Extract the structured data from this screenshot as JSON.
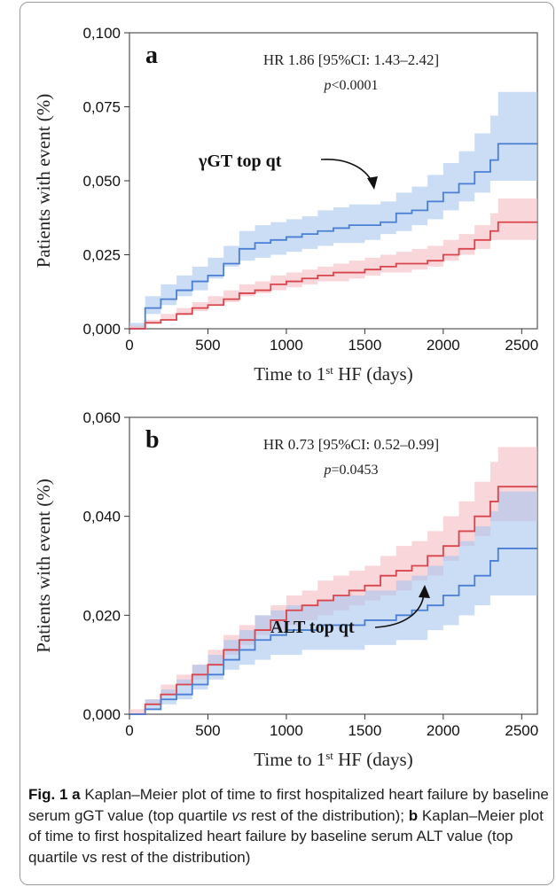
{
  "chart_data": [
    {
      "type": "line",
      "panel_label": "a",
      "hr_text": "HR 1.86 [95%CI: 1.43–2.42]",
      "p_text": "p<0.0001",
      "annotation": "γGT top qt",
      "xlabel": "Time to 1st HF (days)",
      "ylabel": "Patients with event (%)",
      "xlim": [
        0,
        2600
      ],
      "ylim": [
        0,
        0.1
      ],
      "x_ticks": [
        0,
        500,
        1000,
        1500,
        2000,
        2500
      ],
      "x_tick_labels": [
        "0",
        "500",
        "1000",
        "1500",
        "2000",
        "2500"
      ],
      "y_ticks": [
        0,
        0.025,
        0.05,
        0.075,
        0.1
      ],
      "y_tick_labels": [
        "0,000",
        "0,025",
        "0,050",
        "0,075",
        "0,100"
      ],
      "grid": false,
      "series": [
        {
          "color": "#4a7fd4",
          "band_color": "#a9c5ef",
          "x": [
            0,
            100,
            200,
            300,
            400,
            500,
            600,
            700,
            800,
            900,
            1000,
            1100,
            1200,
            1300,
            1400,
            1500,
            1600,
            1700,
            1800,
            1900,
            2000,
            2100,
            2200,
            2300,
            2350,
            2600
          ],
          "y": [
            0,
            0.007,
            0.01,
            0.013,
            0.016,
            0.018,
            0.022,
            0.027,
            0.029,
            0.03,
            0.031,
            0.032,
            0.033,
            0.034,
            0.035,
            0.035,
            0.036,
            0.039,
            0.04,
            0.043,
            0.046,
            0.049,
            0.053,
            0.057,
            0.0625,
            0.0625
          ],
          "lower": [
            0,
            0.002,
            0.005,
            0.008,
            0.011,
            0.013,
            0.017,
            0.021,
            0.023,
            0.024,
            0.025,
            0.026,
            0.027,
            0.028,
            0.029,
            0.029,
            0.03,
            0.032,
            0.033,
            0.035,
            0.037,
            0.04,
            0.043,
            0.046,
            0.05,
            0.05
          ],
          "upper": [
            0,
            0.011,
            0.015,
            0.018,
            0.021,
            0.024,
            0.028,
            0.033,
            0.035,
            0.036,
            0.037,
            0.038,
            0.04,
            0.041,
            0.042,
            0.042,
            0.043,
            0.046,
            0.048,
            0.052,
            0.056,
            0.06,
            0.066,
            0.072,
            0.08,
            0.08
          ]
        },
        {
          "color": "#d9454c",
          "band_color": "#f3bac0",
          "x": [
            0,
            100,
            200,
            300,
            400,
            500,
            600,
            700,
            800,
            900,
            1000,
            1100,
            1200,
            1300,
            1400,
            1500,
            1600,
            1700,
            1800,
            1900,
            2000,
            2100,
            2200,
            2300,
            2350,
            2600
          ],
          "y": [
            0,
            0.002,
            0.003,
            0.005,
            0.007,
            0.008,
            0.01,
            0.012,
            0.013,
            0.015,
            0.016,
            0.017,
            0.018,
            0.019,
            0.019,
            0.02,
            0.021,
            0.022,
            0.022,
            0.023,
            0.025,
            0.027,
            0.03,
            0.033,
            0.036,
            0.036
          ],
          "lower": [
            0,
            0.001,
            0.002,
            0.003,
            0.005,
            0.006,
            0.008,
            0.009,
            0.011,
            0.012,
            0.013,
            0.014,
            0.015,
            0.016,
            0.016,
            0.017,
            0.018,
            0.019,
            0.019,
            0.02,
            0.021,
            0.023,
            0.025,
            0.027,
            0.03,
            0.03
          ],
          "upper": [
            0,
            0.003,
            0.005,
            0.007,
            0.009,
            0.011,
            0.013,
            0.015,
            0.016,
            0.018,
            0.019,
            0.02,
            0.021,
            0.022,
            0.023,
            0.024,
            0.025,
            0.026,
            0.027,
            0.028,
            0.03,
            0.032,
            0.035,
            0.039,
            0.044,
            0.044
          ]
        }
      ]
    },
    {
      "type": "line",
      "panel_label": "b",
      "hr_text": "HR 0.73 [95%CI: 0.52–0.99]",
      "p_text": "p=0.0453",
      "annotation": "ALT top qt",
      "xlabel": "Time to 1st HF (days)",
      "ylabel": "Patients with event (%)",
      "xlim": [
        0,
        2600
      ],
      "ylim": [
        0,
        0.06
      ],
      "x_ticks": [
        0,
        500,
        1000,
        1500,
        2000,
        2500
      ],
      "x_tick_labels": [
        "0",
        "500",
        "1000",
        "1500",
        "2000",
        "2500"
      ],
      "y_ticks": [
        0,
        0.02,
        0.04,
        0.06
      ],
      "y_tick_labels": [
        "0,000",
        "0,020",
        "0,040",
        "0,060"
      ],
      "grid": false,
      "series": [
        {
          "color": "#d9454c",
          "band_color": "#f3bac0",
          "x": [
            0,
            100,
            200,
            300,
            400,
            500,
            600,
            700,
            800,
            900,
            1000,
            1100,
            1200,
            1300,
            1400,
            1500,
            1600,
            1700,
            1800,
            1900,
            2000,
            2100,
            2200,
            2300,
            2350,
            2600
          ],
          "y": [
            0,
            0.002,
            0.004,
            0.006,
            0.008,
            0.01,
            0.013,
            0.015,
            0.017,
            0.019,
            0.021,
            0.022,
            0.023,
            0.024,
            0.025,
            0.026,
            0.028,
            0.029,
            0.03,
            0.032,
            0.034,
            0.037,
            0.04,
            0.043,
            0.046,
            0.046
          ],
          "lower": [
            0,
            0.001,
            0.002,
            0.004,
            0.006,
            0.007,
            0.01,
            0.012,
            0.014,
            0.016,
            0.017,
            0.018,
            0.019,
            0.02,
            0.021,
            0.022,
            0.023,
            0.024,
            0.025,
            0.027,
            0.028,
            0.031,
            0.034,
            0.036,
            0.039,
            0.039
          ],
          "upper": [
            0,
            0.003,
            0.006,
            0.008,
            0.01,
            0.013,
            0.016,
            0.018,
            0.02,
            0.022,
            0.024,
            0.025,
            0.027,
            0.028,
            0.029,
            0.03,
            0.032,
            0.034,
            0.035,
            0.037,
            0.04,
            0.043,
            0.047,
            0.051,
            0.054,
            0.054
          ]
        },
        {
          "color": "#4a7fd4",
          "band_color": "#a9c5ef",
          "x": [
            0,
            100,
            200,
            300,
            400,
            500,
            600,
            700,
            800,
            900,
            1000,
            1100,
            1200,
            1300,
            1400,
            1500,
            1600,
            1700,
            1800,
            1900,
            2000,
            2100,
            2200,
            2300,
            2350,
            2600
          ],
          "y": [
            0,
            0.001,
            0.003,
            0.004,
            0.006,
            0.008,
            0.011,
            0.013,
            0.015,
            0.016,
            0.017,
            0.017,
            0.018,
            0.018,
            0.018,
            0.019,
            0.019,
            0.02,
            0.021,
            0.022,
            0.024,
            0.026,
            0.028,
            0.031,
            0.0335,
            0.0335
          ],
          "lower": [
            0,
            0.0,
            0.001,
            0.002,
            0.003,
            0.005,
            0.007,
            0.009,
            0.01,
            0.011,
            0.012,
            0.012,
            0.013,
            0.013,
            0.013,
            0.013,
            0.014,
            0.014,
            0.015,
            0.015,
            0.017,
            0.018,
            0.02,
            0.022,
            0.024,
            0.024
          ],
          "upper": [
            0,
            0.003,
            0.005,
            0.007,
            0.01,
            0.012,
            0.015,
            0.017,
            0.02,
            0.021,
            0.022,
            0.022,
            0.023,
            0.024,
            0.024,
            0.025,
            0.025,
            0.027,
            0.028,
            0.03,
            0.032,
            0.035,
            0.038,
            0.041,
            0.045,
            0.045
          ]
        }
      ]
    }
  ],
  "caption": {
    "fig_label": "Fig. 1",
    "a_label": "a",
    "a_text": "Kaplan–Meier plot of time to first hospitalized heart failure by baseline serum gGT value (top quartile",
    "a_vs": "vs",
    "a_text2": "rest of the distribution);",
    "b_label": "b",
    "b_text": "Kaplan–Meier plot of time to first hospitalized heart failure by baseline serum ALT value (top quartile vs rest of the distribution)"
  }
}
